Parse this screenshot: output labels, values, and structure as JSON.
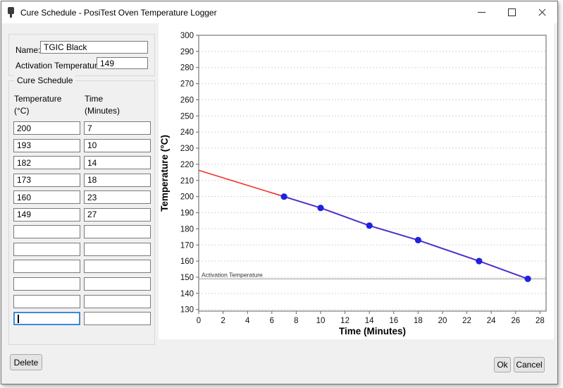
{
  "window": {
    "title": "Cure Schedule - PosiTest Oven Temperature Logger"
  },
  "form": {
    "name_label": "Name:",
    "name_value": "TGIC Black",
    "activation_label": "Activation Temperature",
    "activation_value": "149",
    "group_label": "Cure Schedule",
    "columns": {
      "temp_header": "Temperature",
      "temp_unit": "(°C)",
      "time_header": "Time",
      "time_unit": "(Minutes)"
    },
    "rows": [
      {
        "temperature": "200",
        "time": "7"
      },
      {
        "temperature": "193",
        "time": "10"
      },
      {
        "temperature": "182",
        "time": "14"
      },
      {
        "temperature": "173",
        "time": "18"
      },
      {
        "temperature": "160",
        "time": "23"
      },
      {
        "temperature": "149",
        "time": "27"
      },
      {
        "temperature": "",
        "time": ""
      },
      {
        "temperature": "",
        "time": ""
      },
      {
        "temperature": "",
        "time": ""
      },
      {
        "temperature": "",
        "time": ""
      },
      {
        "temperature": "",
        "time": ""
      },
      {
        "temperature": "",
        "time": ""
      }
    ],
    "focused": {
      "row": 11,
      "column": "temperature"
    }
  },
  "buttons": {
    "delete": "Delete",
    "ok": "Ok",
    "cancel": "Cancel"
  },
  "chart_data": {
    "type": "line",
    "title": "",
    "xlabel": "Time (Minutes)",
    "ylabel": "Temperature (°C)",
    "xlim": [
      0,
      28.5
    ],
    "ylim": [
      129,
      300
    ],
    "x_ticks": [
      0,
      2,
      4,
      6,
      8,
      10,
      12,
      14,
      16,
      18,
      20,
      22,
      24,
      26,
      28
    ],
    "y_ticks": [
      130,
      140,
      150,
      160,
      170,
      180,
      190,
      200,
      210,
      220,
      230,
      240,
      250,
      260,
      270,
      280,
      290,
      300
    ],
    "grid": "horizontal-dotted",
    "legend": "none",
    "annotation": {
      "label": "Activation Temperature",
      "y": 149
    },
    "series": [
      {
        "name": "extrapolated-ramp",
        "color": "#ee3329",
        "width": 1.6,
        "markers": false,
        "x": [
          0,
          7
        ],
        "y": [
          216.3,
          200
        ]
      },
      {
        "name": "cure-schedule",
        "color": "#4f2dc8",
        "marker_color": "#1e22e0",
        "width": 2,
        "markers": true,
        "x": [
          7,
          10,
          14,
          18,
          23,
          27
        ],
        "y": [
          200,
          193,
          182,
          173,
          160,
          149
        ]
      }
    ],
    "colors": {
      "grid": "#c8c8c8",
      "plot_border": "#8c8c8c",
      "annotation_line": "#9a9a9a",
      "tick": "#666666"
    }
  }
}
